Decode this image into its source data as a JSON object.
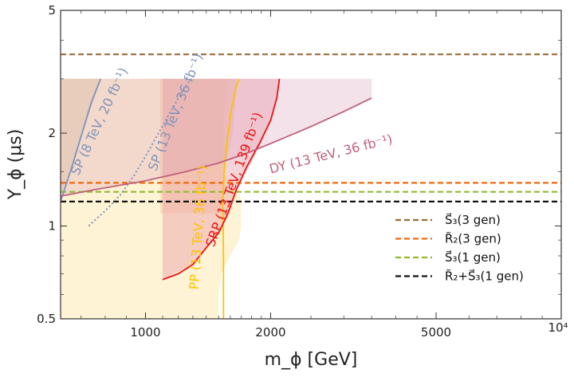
{
  "chart_data": {
    "type": "line",
    "xlabel": "m_ϕ [GeV]",
    "ylabel": "Y_ϕ (μs)",
    "x_scale": "log",
    "y_scale": "log",
    "xlim": [
      625,
      10000
    ],
    "ylim": [
      0.5,
      5
    ],
    "x_ticks": [
      {
        "value": 1000,
        "label": "1000"
      },
      {
        "value": 2000,
        "label": "2000"
      },
      {
        "value": 5000,
        "label": "5000"
      },
      {
        "value": 10000,
        "label": "10⁴"
      }
    ],
    "y_ticks": [
      {
        "value": 0.5,
        "label": "0.5"
      },
      {
        "value": 1,
        "label": "1"
      },
      {
        "value": 2,
        "label": "2"
      },
      {
        "value": 5,
        "label": "5"
      }
    ],
    "exclusion_regions": [
      {
        "name": "SP (8 TeV, 20 fb⁻¹)",
        "fill": "#a89880",
        "opacity": 0.4,
        "x": [
          625,
          625,
          780
        ],
        "y": [
          1.2,
          3.0,
          3.0
        ]
      },
      {
        "name": "PP (13 TeV, 36 fb⁻¹)",
        "fill": "#fde9b0",
        "opacity": 0.55,
        "x": [
          625,
          625,
          1580,
          1540,
          1540,
          1535,
          1600,
          1680,
          1700,
          1700,
          1680,
          1600,
          1520,
          1500,
          1500,
          625
        ],
        "y": [
          0.5,
          3.0,
          3.0,
          2.2,
          1.8,
          1.5,
          1.4,
          1.3,
          1.2,
          1.0,
          0.9,
          0.8,
          0.7,
          0.6,
          0.5,
          0.5
        ]
      },
      {
        "name": "SP (13 TeV, 36 fb⁻¹)",
        "fill": "#f5b88a",
        "opacity": 0.35,
        "x": [
          1085,
          1085,
          1660,
          1640,
          1620,
          1560,
          1540,
          1530,
          1085
        ],
        "y": [
          1.1,
          3.0,
          3.0,
          2.4,
          2.0,
          1.6,
          1.4,
          1.1,
          1.1
        ]
      },
      {
        "name": "SRP (13 TeV, 139 fb⁻¹)",
        "fill": "#e8a0a8",
        "opacity": 0.45,
        "x": [
          1100,
          1100,
          1660,
          2100,
          2080,
          2000,
          1880,
          1750,
          1650,
          1580,
          1500,
          1400,
          1300,
          1100
        ],
        "y": [
          0.67,
          3.0,
          3.0,
          3.0,
          2.6,
          2.2,
          1.8,
          1.5,
          1.3,
          1.1,
          0.95,
          0.85,
          0.75,
          0.67
        ]
      },
      {
        "name": "DY (13 TeV, 36 fb⁻¹)",
        "fill": "#d9a0b8",
        "opacity": 0.3,
        "x": [
          625,
          625,
          3500,
          3500,
          3000,
          2500,
          2000,
          1500,
          1000,
          625
        ],
        "y": [
          1.25,
          3.0,
          3.0,
          2.6,
          2.35,
          2.1,
          1.85,
          1.6,
          1.4,
          1.25
        ]
      }
    ],
    "series": [
      {
        "name": "SP (8 TeV, 20 fb⁻¹)",
        "color": "#7f93b8",
        "dash": "solid",
        "x": [
          625,
          660,
          700,
          740,
          780
        ],
        "y": [
          1.2,
          1.5,
          1.95,
          2.5,
          3.0
        ]
      },
      {
        "name": "SP (13 TeV, 36 fb⁻¹)",
        "color": "#7f93b8",
        "dash": "dotted",
        "x": [
          730,
          800,
          870,
          940,
          1000,
          1070,
          1150,
          1230,
          1290
        ],
        "y": [
          1.0,
          1.12,
          1.26,
          1.46,
          1.68,
          1.98,
          2.35,
          2.75,
          3.0
        ]
      },
      {
        "name": "PP (13 TeV, 36 fb⁻¹)",
        "color": "#ffc200",
        "dash": "solid",
        "x": [
          1540,
          1540,
          1535,
          1550,
          1580,
          1610,
          1650,
          1680
        ],
        "y": [
          0.5,
          0.8,
          1.2,
          1.6,
          2.0,
          2.4,
          2.8,
          3.0
        ]
      },
      {
        "name": "SRP (13 TeV, 139 fb⁻¹)",
        "color": "#ee1111",
        "dash": "solid",
        "x": [
          1100,
          1200,
          1300,
          1400,
          1500,
          1580,
          1650,
          1750,
          1880,
          2000,
          2070,
          2100
        ],
        "y": [
          0.67,
          0.7,
          0.75,
          0.85,
          0.95,
          1.1,
          1.3,
          1.55,
          1.85,
          2.2,
          2.6,
          3.0
        ]
      },
      {
        "name": "DY (13 TeV, 36 fb⁻¹)",
        "color": "#c0607a",
        "dash": "solid",
        "x": [
          625,
          800,
          1000,
          1250,
          1500,
          1750,
          2000,
          2500,
          3000,
          3500
        ],
        "y": [
          1.25,
          1.33,
          1.4,
          1.5,
          1.6,
          1.72,
          1.85,
          2.1,
          2.35,
          2.6
        ]
      }
    ],
    "reference_lines": [
      {
        "name": "S⃗₃(3 gen)",
        "y": 3.6,
        "color": "#9b6a3c",
        "dash": "dashed"
      },
      {
        "name": "R̃₂(3 gen)",
        "y": 1.38,
        "color": "#f06a10",
        "dash": "dashed"
      },
      {
        "name": "S⃗₃(1 gen)",
        "y": 1.29,
        "color": "#8fba30",
        "dash": "dashed"
      },
      {
        "name": "R̃₂+S⃗₃(1 gen)",
        "y": 1.2,
        "color": "#111111",
        "dash": "dashed"
      }
    ],
    "annotations": [
      {
        "text": "SP (8 TeV, 20 fb⁻¹)",
        "color": "#7f93b8",
        "x": 690,
        "y": 1.45,
        "angle": -65
      },
      {
        "text": "SP (13 TeV, 36 fb⁻¹)",
        "color": "#7f93b8",
        "x": 1060,
        "y": 1.5,
        "angle": -68
      },
      {
        "text": "PP (13 TeV, 36 fb⁻¹)",
        "color": "#ffc200",
        "x": 1340,
        "y": 0.62,
        "angle": -86
      },
      {
        "text": "SRP (13 TeV, 139 fb⁻¹)",
        "color": "#ee1111",
        "x": 1460,
        "y": 0.85,
        "angle": -70
      },
      {
        "text": "DY (13 TeV, 36 fb⁻¹)",
        "color": "#c0607a",
        "x": 2000,
        "y": 1.48,
        "angle": -14
      }
    ],
    "legend": {
      "position": "bottom-right"
    }
  }
}
